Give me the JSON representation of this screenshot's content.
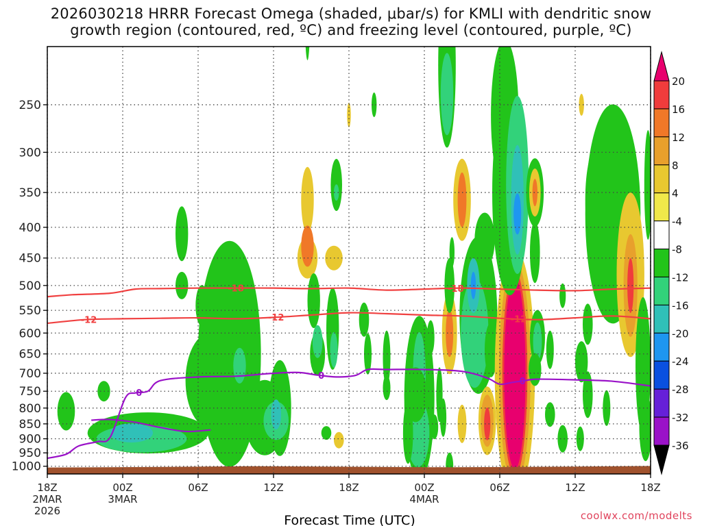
{
  "title": {
    "line1": "2026030218 HRRR Forecast Omega (shaded, μbar/s) for KMLI with dendritic snow",
    "line2": "growth region (contoured, red, ºC) and freezing level (contoured, purple, ºC)"
  },
  "credit": "coolwx.com/modelts",
  "chart_data": {
    "type": "heatmap",
    "xlabel": "Forecast Time (UTC)",
    "ylabel": "",
    "x_range_hours": [
      0,
      48
    ],
    "y_range_hPa": [
      1030,
      200
    ],
    "y_ticks": [
      250,
      300,
      350,
      400,
      450,
      500,
      550,
      600,
      650,
      700,
      750,
      800,
      850,
      900,
      950,
      1000
    ],
    "x_ticks": [
      {
        "hour": 0,
        "label": "18Z",
        "sub": [
          "2MAR",
          "2026"
        ]
      },
      {
        "hour": 6,
        "label": "00Z",
        "sub": [
          "3MAR"
        ]
      },
      {
        "hour": 12,
        "label": "06Z",
        "sub": []
      },
      {
        "hour": 18,
        "label": "12Z",
        "sub": []
      },
      {
        "hour": 24,
        "label": "18Z",
        "sub": []
      },
      {
        "hour": 30,
        "label": "00Z",
        "sub": [
          "4MAR"
        ]
      },
      {
        "hour": 36,
        "label": "06Z",
        "sub": []
      },
      {
        "hour": 42,
        "label": "12Z",
        "sub": []
      },
      {
        "hour": 48,
        "label": "18Z",
        "sub": []
      }
    ],
    "colorbar": {
      "labels": [
        20,
        16,
        12,
        8,
        4,
        -4,
        -8,
        -12,
        -16,
        -20,
        -24,
        -28,
        -32,
        -36
      ],
      "colors": [
        "#e8006e",
        "#f03c3c",
        "#f07828",
        "#e8a02c",
        "#e8c830",
        "#f0e84a",
        "#ffffff",
        "#22c41a",
        "#32d27a",
        "#30c0b8",
        "#1e96f0",
        "#0a50e0",
        "#6620d8",
        "#9a12c8",
        "#a8a8a8",
        "#000000"
      ]
    },
    "contours": {
      "dgz_minus18": {
        "label": "-18",
        "color": "#f04040",
        "points": [
          [
            0,
            522
          ],
          [
            2,
            518
          ],
          [
            5,
            515
          ],
          [
            7,
            507
          ],
          [
            9,
            506
          ],
          [
            12,
            505
          ],
          [
            15,
            505
          ],
          [
            18,
            505
          ],
          [
            21,
            506
          ],
          [
            24,
            505
          ],
          [
            27,
            509
          ],
          [
            30,
            507
          ],
          [
            33,
            505
          ],
          [
            36,
            507
          ],
          [
            39,
            509
          ],
          [
            42,
            510
          ],
          [
            45,
            507
          ],
          [
            48,
            505
          ]
        ],
        "label_hours": [
          15,
          32.5
        ]
      },
      "dgz_minus12": {
        "label": "-12",
        "color": "#f04040",
        "points": [
          [
            0,
            578
          ],
          [
            3,
            570
          ],
          [
            6,
            568
          ],
          [
            9,
            567
          ],
          [
            12,
            566
          ],
          [
            15,
            568
          ],
          [
            18,
            565
          ],
          [
            21,
            560
          ],
          [
            24,
            555
          ],
          [
            27,
            557
          ],
          [
            30,
            560
          ],
          [
            33,
            562
          ],
          [
            36,
            567
          ],
          [
            39,
            570
          ],
          [
            42,
            566
          ],
          [
            45,
            562
          ],
          [
            48,
            568
          ]
        ],
        "label_hours": [
          3.3,
          18.2,
          37.5
        ]
      },
      "freezing_level": {
        "label": "0",
        "color": "#9a12c8",
        "points": [
          [
            0,
            970
          ],
          [
            1.5,
            955
          ],
          [
            2.5,
            925
          ],
          [
            4,
            910
          ],
          [
            5,
            895
          ],
          [
            6.2,
            770
          ],
          [
            7,
            755
          ],
          [
            8,
            750
          ],
          [
            9,
            720
          ],
          [
            12,
            710
          ],
          [
            15,
            708
          ],
          [
            18,
            700
          ],
          [
            20,
            698
          ],
          [
            21.5,
            705
          ],
          [
            23,
            710
          ],
          [
            24.5,
            706
          ],
          [
            25.5,
            690
          ],
          [
            27,
            690
          ],
          [
            30,
            690
          ],
          [
            33,
            695
          ],
          [
            35,
            713
          ],
          [
            36,
            730
          ],
          [
            37,
            725
          ],
          [
            38,
            720
          ],
          [
            39,
            716
          ],
          [
            42,
            718
          ],
          [
            45,
            722
          ],
          [
            48,
            735
          ]
        ],
        "label_hours": [
          7.3,
          21.8,
          37.8
        ]
      },
      "freezing_level_fragment": {
        "label": "0",
        "color": "#9a12c8",
        "points": [
          [
            3.5,
            838
          ],
          [
            5,
            836
          ],
          [
            7,
            845
          ],
          [
            9,
            862
          ],
          [
            11,
            875
          ],
          [
            13,
            870
          ]
        ]
      }
    },
    "bottom_fill": {
      "label": "terrain",
      "color": "#a0522d"
    }
  }
}
